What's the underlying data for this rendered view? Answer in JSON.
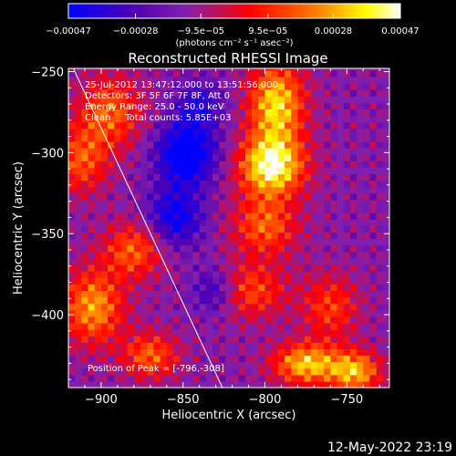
{
  "chart_data": {
    "type": "heatmap",
    "title": "Reconstructed RHESSI Image",
    "xlabel": "Heliocentric X (arcsec)",
    "ylabel": "Heliocentric Y (arcsec)",
    "xlim": [
      -920,
      -724
    ],
    "ylim": [
      -445,
      -248
    ],
    "x_ticks": [
      {
        "value": -900,
        "label": "−900"
      },
      {
        "value": -850,
        "label": "−850"
      },
      {
        "value": -800,
        "label": "−800"
      },
      {
        "value": -750,
        "label": "−750"
      }
    ],
    "y_ticks": [
      {
        "value": -250,
        "label": "−250"
      },
      {
        "value": -300,
        "label": "−300"
      },
      {
        "value": -350,
        "label": "−350"
      },
      {
        "value": -400,
        "label": "−400"
      }
    ],
    "colorbar": {
      "min": -0.00047,
      "max": 0.00047,
      "ticks": [
        {
          "value": -0.00047,
          "label": "−0.00047"
        },
        {
          "value": -0.00028,
          "label": "−0.00028"
        },
        {
          "value": -9.5e-05,
          "label": "−9.5e−05"
        },
        {
          "value": 9.5e-05,
          "label": "9.5e−05"
        },
        {
          "value": 0.00028,
          "label": "0.00028"
        },
        {
          "value": 0.00047,
          "label": "0.00047"
        }
      ],
      "unit_label": "(photons cm⁻² s⁻¹ asec⁻²)"
    },
    "annotations": [
      "25-Jul-2012 13:47:12.000 to 13:51:56.000",
      "Detectors: 3F 5F 6F 7F 8F, Att 0",
      "Energy Range: 25.0 - 50.0 keV",
      "Clean     Total counts: 5.85E+03"
    ],
    "peak_label": "Position of Peak = [-796,-308]",
    "peak_position": [
      -796,
      -308
    ],
    "limb_line": [
      [
        -917,
        -248
      ],
      [
        -826,
        -445
      ]
    ],
    "grid": false,
    "colors": {
      "background": "#000000",
      "foreground": "#ffffff",
      "colormap": [
        "#0000ff",
        "#5000b0",
        "#8020b0",
        "#ff0000",
        "#ff8000",
        "#ffff00",
        "#ffffff"
      ]
    },
    "sources": [
      {
        "x": -796,
        "y": -308,
        "amp": 1.0,
        "sx": 14,
        "sy": 13
      },
      {
        "x": -793,
        "y": -270,
        "amp": 0.85,
        "sx": 12,
        "sy": 18
      },
      {
        "x": -800,
        "y": -345,
        "amp": 0.55,
        "sx": 14,
        "sy": 13
      },
      {
        "x": -810,
        "y": -385,
        "amp": 0.5,
        "sx": 16,
        "sy": 12
      },
      {
        "x": -775,
        "y": -430,
        "amp": 0.8,
        "sx": 14,
        "sy": 9
      },
      {
        "x": -745,
        "y": -435,
        "amp": 0.75,
        "sx": 11,
        "sy": 9
      },
      {
        "x": -760,
        "y": -395,
        "amp": 0.45,
        "sx": 12,
        "sy": 14
      },
      {
        "x": -895,
        "y": -275,
        "amp": 0.55,
        "sx": 14,
        "sy": 16
      },
      {
        "x": -912,
        "y": -305,
        "amp": 0.5,
        "sx": 11,
        "sy": 14
      },
      {
        "x": -880,
        "y": -360,
        "amp": 0.55,
        "sx": 13,
        "sy": 12
      },
      {
        "x": -905,
        "y": -395,
        "amp": 0.7,
        "sx": 13,
        "sy": 16
      },
      {
        "x": -870,
        "y": -425,
        "amp": 0.55,
        "sx": 12,
        "sy": 10
      },
      {
        "x": -848,
        "y": -300,
        "amp": -0.75,
        "sx": 13,
        "sy": 14
      },
      {
        "x": -855,
        "y": -340,
        "amp": -0.55,
        "sx": 12,
        "sy": 13
      },
      {
        "x": -830,
        "y": -385,
        "amp": -0.45,
        "sx": 10,
        "sy": 10
      },
      {
        "x": -840,
        "y": -270,
        "amp": -0.4,
        "sx": 10,
        "sy": 10
      }
    ]
  },
  "timestamp": "12-May-2022 23:19"
}
